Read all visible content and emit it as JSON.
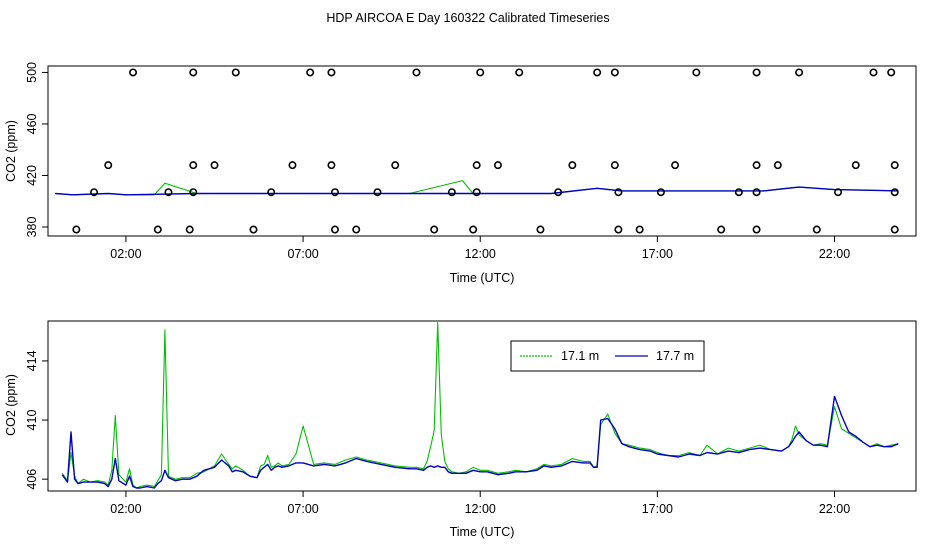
{
  "title": "HDP AIRCOA E  Day 160322  Calibrated Timeseries",
  "colors": {
    "green": "#00c000",
    "blue": "#0000c8",
    "markers": "#000000"
  },
  "chart_data": [
    {
      "type": "scatter+line",
      "xlabel": "Time (UTC)",
      "ylabel": "CO2 (ppm)",
      "xlim": [
        -0.2,
        24.3
      ],
      "ylim": [
        373,
        505
      ],
      "xticks": [
        2,
        7,
        12,
        17,
        22
      ],
      "xtick_labels": [
        "02:00",
        "07:00",
        "12:00",
        "17:00",
        "22:00"
      ],
      "yticks": [
        380,
        420,
        460,
        500
      ],
      "ytick_labels": [
        "380",
        "420",
        "460",
        "500"
      ],
      "points": [
        [
          2.2,
          500
        ],
        [
          3.9,
          500
        ],
        [
          5.1,
          500
        ],
        [
          7.2,
          500
        ],
        [
          7.8,
          500
        ],
        [
          10.2,
          500
        ],
        [
          12.0,
          500
        ],
        [
          13.1,
          500
        ],
        [
          15.3,
          500
        ],
        [
          15.8,
          500
        ],
        [
          18.1,
          500
        ],
        [
          19.8,
          500
        ],
        [
          21.0,
          500
        ],
        [
          23.1,
          500
        ],
        [
          23.6,
          500
        ],
        [
          1.5,
          428
        ],
        [
          3.9,
          428
        ],
        [
          4.5,
          428
        ],
        [
          6.7,
          428
        ],
        [
          7.8,
          428
        ],
        [
          9.6,
          428
        ],
        [
          11.9,
          428
        ],
        [
          12.5,
          428
        ],
        [
          14.6,
          428
        ],
        [
          15.8,
          428
        ],
        [
          17.5,
          428
        ],
        [
          19.8,
          428
        ],
        [
          20.4,
          428
        ],
        [
          22.6,
          428
        ],
        [
          23.7,
          428
        ],
        [
          1.1,
          407
        ],
        [
          3.2,
          407
        ],
        [
          3.9,
          407
        ],
        [
          6.1,
          407
        ],
        [
          7.9,
          407
        ],
        [
          9.1,
          407
        ],
        [
          11.2,
          407
        ],
        [
          11.9,
          407
        ],
        [
          14.2,
          407
        ],
        [
          15.9,
          407
        ],
        [
          17.1,
          407
        ],
        [
          19.3,
          407
        ],
        [
          19.8,
          407
        ],
        [
          22.1,
          407
        ],
        [
          23.7,
          407
        ],
        [
          0.6,
          378
        ],
        [
          2.9,
          378
        ],
        [
          3.8,
          378
        ],
        [
          5.6,
          378
        ],
        [
          7.9,
          378
        ],
        [
          8.5,
          378
        ],
        [
          10.7,
          378
        ],
        [
          11.8,
          378
        ],
        [
          13.7,
          378
        ],
        [
          15.9,
          378
        ],
        [
          16.5,
          378
        ],
        [
          18.8,
          378
        ],
        [
          19.8,
          378
        ],
        [
          21.5,
          378
        ],
        [
          23.7,
          378
        ]
      ],
      "series": [
        {
          "color": "green",
          "x": [
            0,
            0.5,
            1.5,
            2.0,
            2.8,
            3.1,
            4.0,
            6.0,
            8.0,
            10.0,
            11.5,
            11.8,
            12.0,
            14.0,
            15.3,
            16.0,
            18.0,
            20.0,
            20.6,
            21.0,
            22.0,
            23.8
          ],
          "y": [
            406,
            405,
            406,
            405,
            405,
            414,
            406,
            406,
            406,
            406,
            416,
            406,
            406,
            406,
            410,
            408,
            408,
            408,
            410,
            411,
            409,
            408
          ]
        },
        {
          "color": "blue",
          "x": [
            0,
            0.5,
            1.5,
            2.0,
            4.0,
            6.0,
            8.0,
            10.0,
            12.0,
            14.0,
            15.3,
            16.0,
            18.0,
            20.0,
            21.0,
            22.0,
            23.8
          ],
          "y": [
            406,
            405,
            406,
            405,
            406,
            406,
            406,
            406,
            406,
            406,
            410,
            408,
            408,
            408,
            411,
            409,
            408
          ]
        }
      ]
    },
    {
      "type": "line",
      "xlabel": "Time (UTC)",
      "ylabel": "CO2 (ppm)",
      "xlim": [
        -0.2,
        24.3
      ],
      "ylim": [
        405.2,
        416.7
      ],
      "xticks": [
        2,
        7,
        12,
        17,
        22
      ],
      "xtick_labels": [
        "02:00",
        "07:00",
        "12:00",
        "17:00",
        "22:00"
      ],
      "yticks": [
        406,
        410,
        414
      ],
      "ytick_labels": [
        "406",
        "410",
        "414"
      ],
      "legend": {
        "position": "top-right"
      },
      "series": [
        {
          "name": "17.1 m",
          "color": "green",
          "x": [
            0.2,
            0.35,
            0.45,
            0.55,
            0.65,
            0.8,
            1.0,
            1.2,
            1.4,
            1.5,
            1.6,
            1.7,
            1.8,
            2.0,
            2.1,
            2.2,
            2.3,
            2.4,
            2.6,
            2.8,
            2.9,
            3.0,
            3.1,
            3.2,
            3.3,
            3.4,
            3.6,
            3.8,
            4.0,
            4.2,
            4.5,
            4.7,
            4.9,
            5.0,
            5.1,
            5.3,
            5.5,
            5.7,
            5.8,
            5.9,
            6.0,
            6.1,
            6.2,
            6.3,
            6.4,
            6.6,
            6.8,
            7.0,
            7.3,
            7.6,
            7.9,
            8.2,
            8.5,
            8.8,
            9.2,
            9.6,
            10.0,
            10.2,
            10.4,
            10.5,
            10.6,
            10.7,
            10.8,
            10.9,
            11.0,
            11.1,
            11.2,
            11.4,
            11.6,
            11.8,
            12.0,
            12.2,
            12.5,
            12.8,
            13.0,
            13.3,
            13.6,
            13.8,
            14.0,
            14.3,
            14.6,
            14.9,
            15.1,
            15.2,
            15.3,
            15.4,
            15.6,
            15.8,
            16.0,
            16.2,
            16.5,
            16.8,
            17.0,
            17.3,
            17.6,
            17.9,
            18.2,
            18.4,
            18.7,
            19.0,
            19.3,
            19.6,
            19.9,
            20.2,
            20.5,
            20.7,
            20.8,
            20.9,
            21.0,
            21.2,
            21.4,
            21.6,
            21.8,
            22.0,
            22.2,
            22.4,
            22.6,
            22.8,
            23.0,
            23.2,
            23.4,
            23.6,
            23.8
          ],
          "y": [
            406.4,
            405.9,
            407.8,
            406.2,
            405.7,
            406.0,
            405.8,
            405.9,
            405.8,
            405.6,
            406.6,
            410.3,
            406.3,
            405.8,
            406.7,
            405.6,
            405.4,
            405.5,
            405.6,
            405.5,
            405.9,
            406.3,
            416.1,
            406.2,
            406.1,
            406.0,
            406.1,
            406.1,
            406.4,
            406.5,
            406.9,
            407.7,
            407.0,
            406.7,
            406.9,
            406.6,
            406.2,
            406.1,
            406.9,
            407.0,
            407.6,
            406.8,
            406.9,
            407.1,
            406.9,
            407.0,
            407.7,
            409.6,
            407.0,
            407.1,
            407.0,
            407.3,
            407.5,
            407.3,
            407.1,
            406.9,
            406.8,
            406.8,
            406.7,
            407.2,
            408.2,
            409.3,
            416.6,
            409.0,
            407.2,
            406.7,
            406.5,
            406.4,
            406.5,
            406.8,
            406.6,
            406.6,
            406.4,
            406.5,
            406.6,
            406.5,
            406.7,
            407.0,
            406.9,
            407.0,
            407.4,
            407.2,
            407.2,
            406.8,
            406.9,
            409.7,
            410.4,
            409.1,
            408.4,
            408.3,
            408.1,
            408.0,
            407.8,
            407.6,
            407.6,
            407.8,
            407.6,
            408.3,
            407.7,
            408.1,
            407.9,
            408.1,
            408.3,
            408.0,
            407.9,
            408.2,
            408.7,
            409.6,
            409.0,
            408.6,
            408.3,
            408.4,
            408.3,
            410.9,
            409.4,
            409.1,
            408.8,
            408.5,
            408.2,
            408.4,
            408.2,
            408.3,
            408.4
          ]
        },
        {
          "name": "17.7 m",
          "color": "blue",
          "x": [
            0.2,
            0.35,
            0.45,
            0.55,
            0.65,
            0.8,
            1.0,
            1.2,
            1.4,
            1.5,
            1.6,
            1.7,
            1.8,
            2.0,
            2.1,
            2.2,
            2.3,
            2.4,
            2.6,
            2.8,
            2.9,
            3.0,
            3.1,
            3.2,
            3.3,
            3.4,
            3.6,
            3.8,
            4.0,
            4.2,
            4.5,
            4.7,
            4.9,
            5.0,
            5.1,
            5.3,
            5.5,
            5.7,
            5.8,
            5.9,
            6.0,
            6.1,
            6.2,
            6.3,
            6.4,
            6.6,
            6.8,
            7.0,
            7.3,
            7.6,
            7.9,
            8.2,
            8.5,
            8.8,
            9.2,
            9.6,
            10.0,
            10.2,
            10.4,
            10.5,
            10.6,
            10.7,
            10.8,
            10.9,
            11.0,
            11.1,
            11.2,
            11.4,
            11.6,
            11.8,
            12.0,
            12.2,
            12.5,
            12.8,
            13.0,
            13.3,
            13.6,
            13.8,
            14.0,
            14.3,
            14.6,
            14.9,
            15.1,
            15.2,
            15.3,
            15.4,
            15.6,
            15.8,
            16.0,
            16.2,
            16.5,
            16.8,
            17.0,
            17.3,
            17.6,
            17.9,
            18.2,
            18.4,
            18.7,
            19.0,
            19.3,
            19.6,
            19.9,
            20.2,
            20.5,
            20.7,
            20.8,
            20.9,
            21.0,
            21.2,
            21.4,
            21.6,
            21.8,
            22.0,
            22.2,
            22.4,
            22.6,
            22.8,
            23.0,
            23.2,
            23.4,
            23.6,
            23.8
          ],
          "y": [
            406.3,
            405.8,
            409.2,
            406.0,
            405.7,
            405.8,
            405.8,
            405.8,
            405.7,
            405.5,
            406.0,
            407.4,
            405.9,
            405.6,
            406.2,
            405.5,
            405.4,
            405.4,
            405.5,
            405.4,
            405.7,
            405.9,
            406.6,
            406.1,
            406.0,
            405.9,
            406.0,
            406.0,
            406.2,
            406.6,
            406.8,
            407.3,
            406.9,
            406.5,
            406.6,
            406.5,
            406.2,
            406.1,
            406.6,
            406.8,
            407.0,
            406.6,
            406.8,
            406.9,
            406.8,
            406.9,
            407.1,
            407.1,
            406.9,
            407.0,
            406.9,
            407.1,
            407.4,
            407.2,
            407.0,
            406.8,
            406.7,
            406.7,
            406.6,
            406.8,
            406.9,
            406.8,
            406.9,
            406.8,
            406.8,
            406.5,
            406.4,
            406.4,
            406.4,
            406.6,
            406.5,
            406.5,
            406.3,
            406.4,
            406.5,
            406.5,
            406.6,
            406.9,
            406.8,
            406.9,
            407.2,
            407.1,
            407.1,
            406.8,
            406.8,
            410.0,
            410.1,
            409.4,
            408.4,
            408.2,
            408.0,
            407.9,
            407.7,
            407.6,
            407.5,
            407.7,
            407.6,
            407.8,
            407.7,
            407.9,
            407.8,
            408.0,
            408.1,
            408.0,
            407.9,
            408.2,
            408.5,
            408.9,
            409.2,
            408.6,
            408.3,
            408.3,
            408.2,
            411.6,
            410.3,
            409.2,
            408.9,
            408.5,
            408.2,
            408.3,
            408.2,
            408.2,
            408.4
          ]
        }
      ]
    }
  ]
}
